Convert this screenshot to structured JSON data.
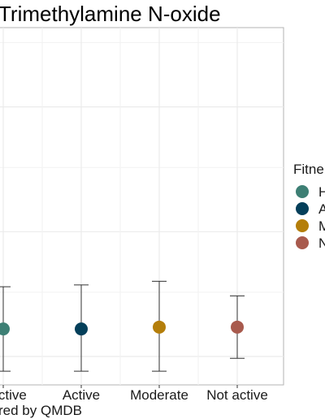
{
  "chart_data": {
    "type": "scatter",
    "title": "Trimethylamine N-oxide",
    "xlabel": "red by QMDB",
    "ylabel": "",
    "categories": [
      "y active",
      "Active",
      "Moderate",
      "Not active"
    ],
    "points": [
      {
        "category": "y active",
        "value": 0.4,
        "lower": 0.17,
        "upper": 0.63,
        "color": "#3d7f74"
      },
      {
        "category": "Active",
        "value": 0.4,
        "lower": 0.17,
        "upper": 0.64,
        "color": "#043f5a"
      },
      {
        "category": "Moderate",
        "value": 0.41,
        "lower": 0.17,
        "upper": 0.66,
        "color": "#b47e0a"
      },
      {
        "category": "Not active",
        "value": 0.41,
        "lower": 0.24,
        "upper": 0.58,
        "color": "#a85a4d"
      }
    ],
    "ylim": [
      0,
      2.4
    ],
    "grid": true,
    "legend": {
      "title": "Fitne",
      "placement": "right",
      "entries": [
        {
          "label": "H",
          "color": "#3d7f74"
        },
        {
          "label": "A",
          "color": "#043f5a"
        },
        {
          "label": "M",
          "color": "#b47e0a"
        },
        {
          "label": "N",
          "color": "#a85a4d"
        }
      ]
    }
  }
}
